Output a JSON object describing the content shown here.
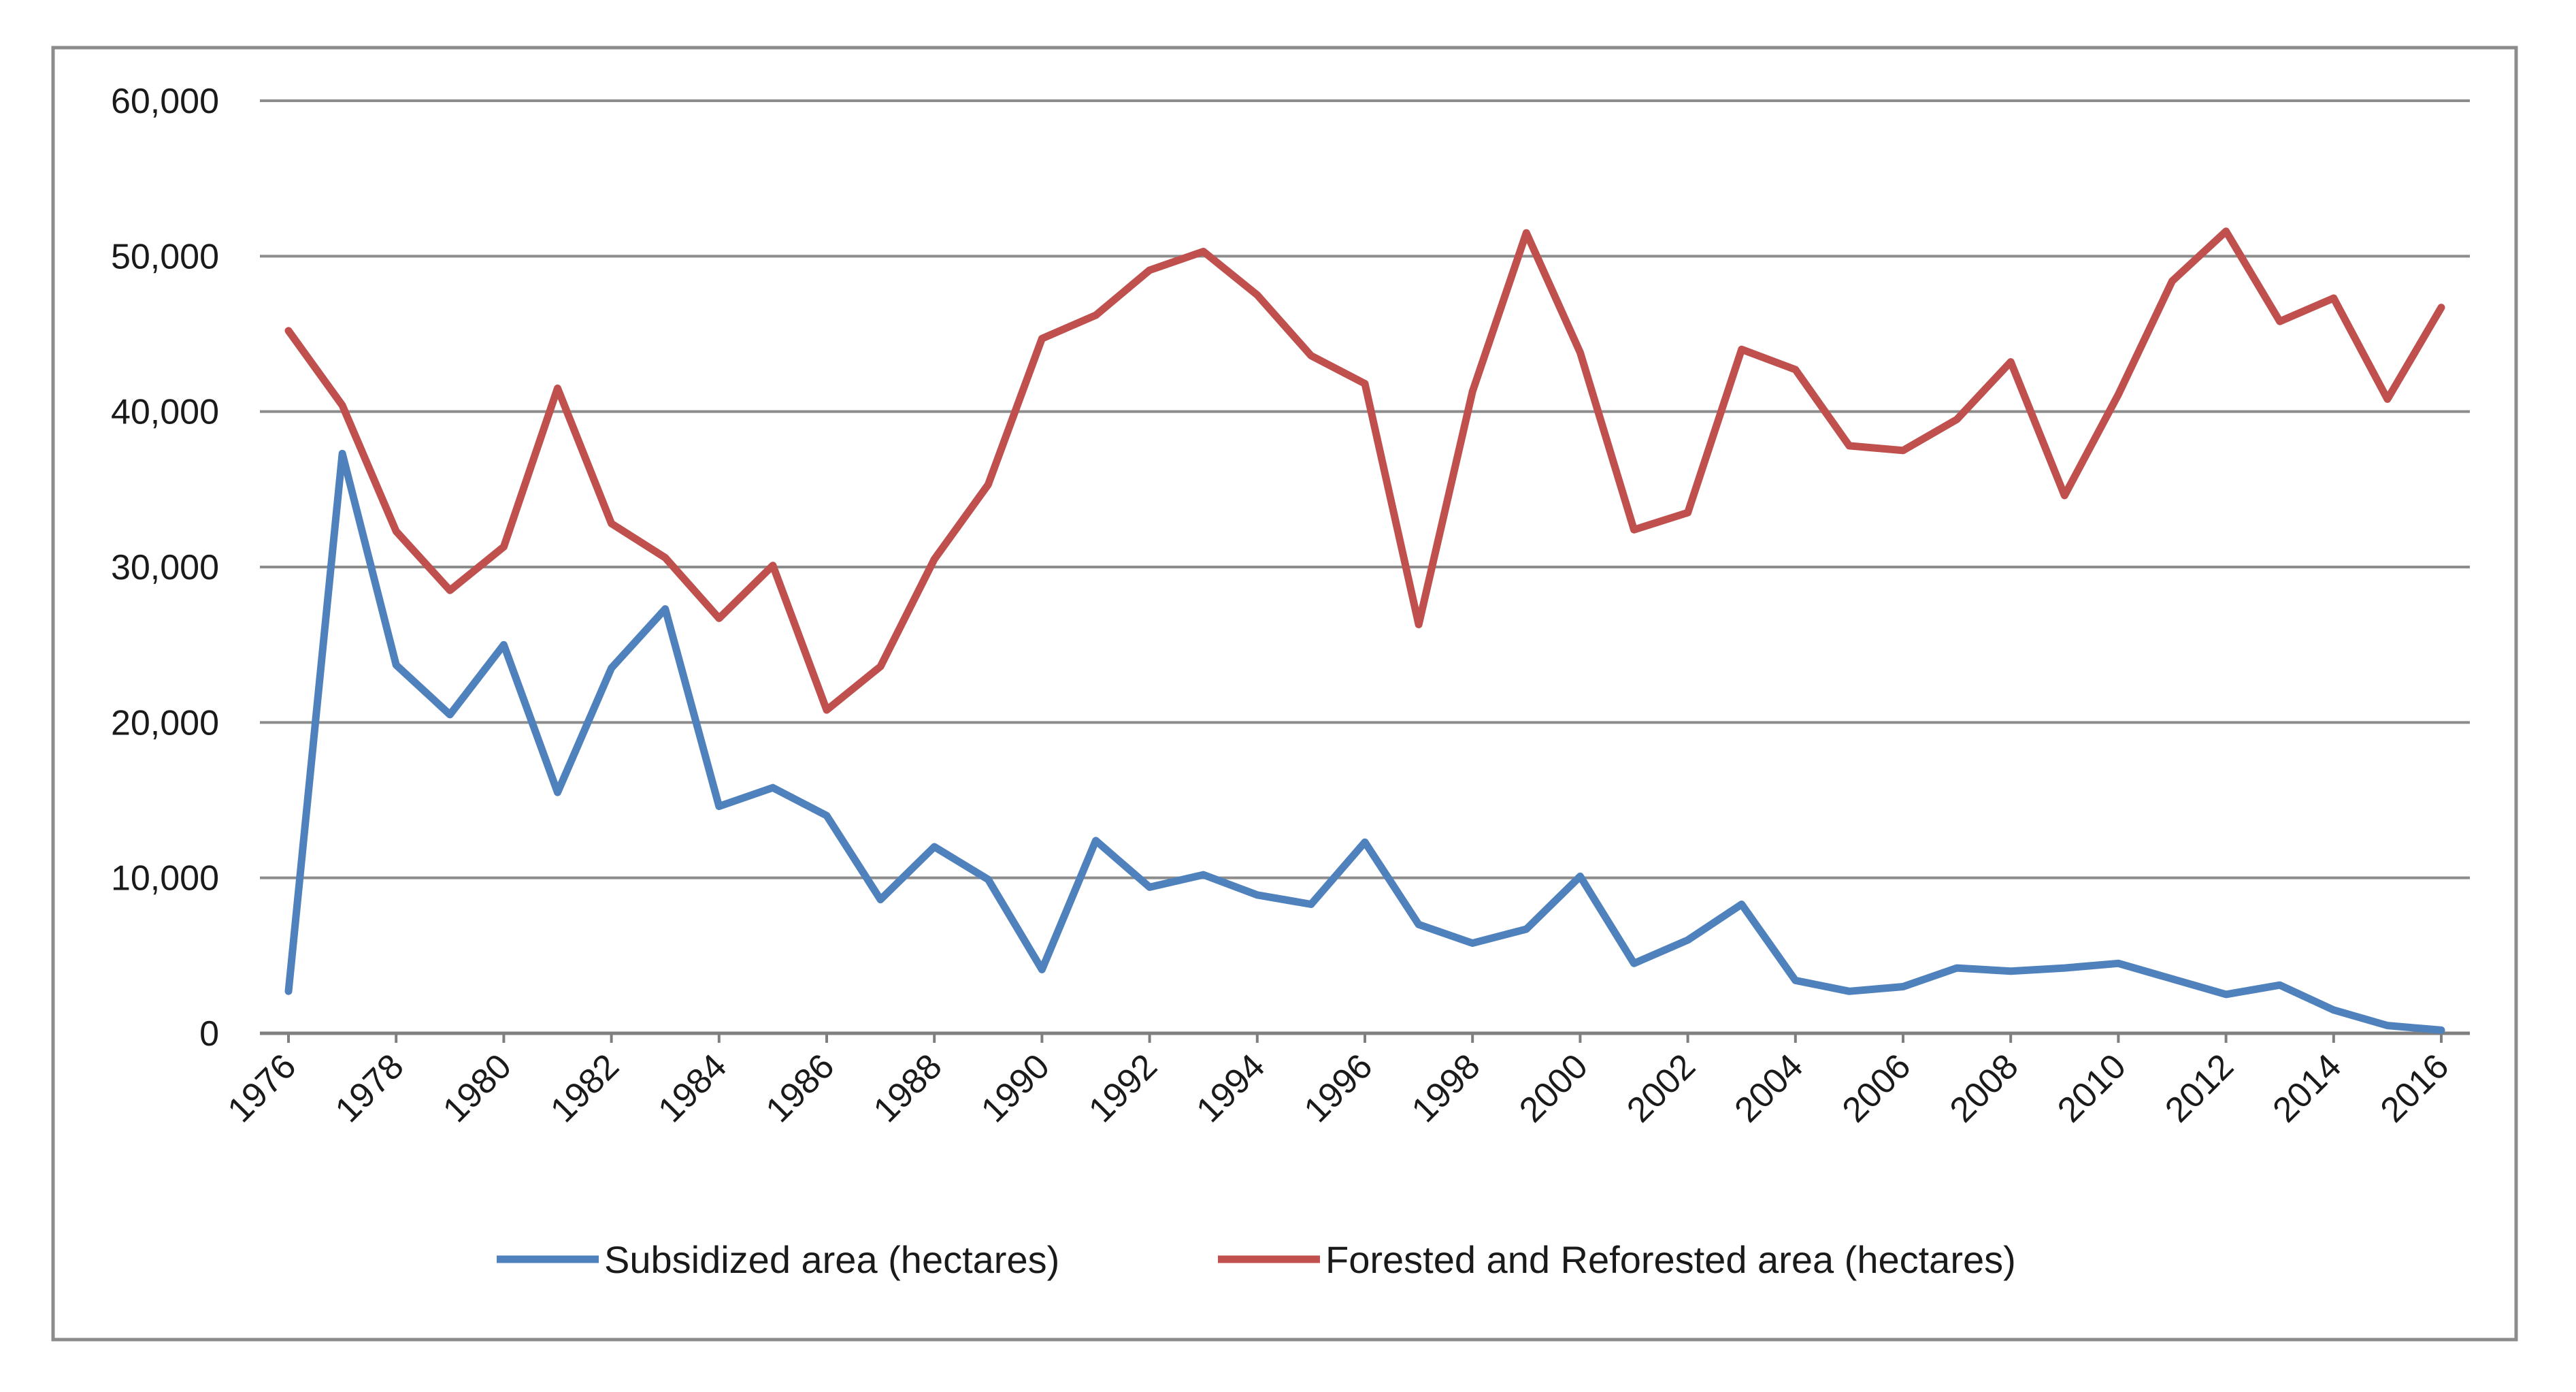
{
  "chart_data": {
    "type": "line",
    "title": "",
    "xlabel": "",
    "ylabel": "",
    "ylim": [
      0,
      60000
    ],
    "yticks": [
      0,
      10000,
      20000,
      30000,
      40000,
      50000,
      60000
    ],
    "ytick_labels": [
      "0",
      "10,000",
      "20,000",
      "30,000",
      "40,000",
      "50,000",
      "60,000"
    ],
    "xlim": [
      1976,
      2016
    ],
    "xtick_labels": [
      "1976",
      "1978",
      "1980",
      "1982",
      "1984",
      "1986",
      "1988",
      "1990",
      "1992",
      "1994",
      "1996",
      "1998",
      "2000",
      "2002",
      "2004",
      "2006",
      "2008",
      "2010",
      "2012",
      "2014",
      "2016"
    ],
    "grid": true,
    "legend_position": "bottom",
    "x": [
      1976,
      1977,
      1978,
      1979,
      1980,
      1981,
      1982,
      1983,
      1984,
      1985,
      1986,
      1987,
      1988,
      1989,
      1990,
      1991,
      1992,
      1993,
      1994,
      1995,
      1996,
      1997,
      1998,
      1999,
      2000,
      2001,
      2002,
      2003,
      2004,
      2005,
      2006,
      2007,
      2008,
      2009,
      2010,
      2011,
      2012,
      2013,
      2014,
      2015,
      2016
    ],
    "series": [
      {
        "name": "Subsidized area (hectares)",
        "color": "#4f81bd",
        "values": [
          2700,
          37300,
          23700,
          20500,
          25000,
          15500,
          23500,
          27300,
          14600,
          15800,
          14000,
          8600,
          12000,
          9900,
          4100,
          12400,
          9400,
          10200,
          8900,
          8300,
          12300,
          7000,
          5800,
          6700,
          10100,
          4500,
          6000,
          8300,
          3400,
          2700,
          3000,
          4200,
          4000,
          4200,
          4500,
          3500,
          2500,
          3100,
          1500,
          500,
          200
        ]
      },
      {
        "name": "Forested and Reforested area (hectares)",
        "color": "#c0504d",
        "values": [
          45200,
          40400,
          32300,
          28500,
          31300,
          41500,
          32800,
          30600,
          26700,
          30100,
          20800,
          23600,
          30500,
          35300,
          44700,
          46200,
          49100,
          50300,
          47500,
          43600,
          41800,
          26300,
          41300,
          51500,
          43800,
          32400,
          33500,
          44000,
          42700,
          37800,
          37500,
          39500,
          43200,
          34600,
          41100,
          48400,
          51600,
          45800,
          47300,
          40800,
          46700
        ]
      }
    ]
  }
}
